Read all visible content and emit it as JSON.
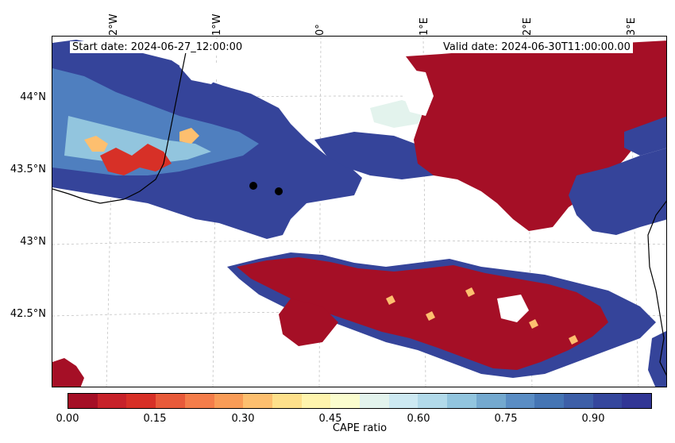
{
  "map": {
    "start_date": "Start date: 2024-06-27_12:00:00",
    "valid_date": "Valid  date: 2024-06-30T11:00:00.00",
    "lon_labels": [
      "2°W",
      "1°W",
      "0°",
      "1°E",
      "2°E",
      "3°E"
    ],
    "lat_labels": [
      "44°N",
      "43.5°N",
      "43°N",
      "42.5°N"
    ],
    "point_markers": [
      {
        "lon": -0.63,
        "lat": 43.39
      },
      {
        "lon": -0.37,
        "lat": 43.35
      }
    ]
  },
  "colorbar": {
    "label": "CAPE ratio",
    "ticks": [
      "0.00",
      "0.15",
      "0.30",
      "0.45",
      "0.60",
      "0.75",
      "0.90"
    ],
    "range": [
      0,
      1
    ],
    "colors": [
      "#a50f26",
      "#c7222a",
      "#d73027",
      "#e85a3a",
      "#f47d4a",
      "#f99c57",
      "#fdbf6f",
      "#fee08b",
      "#fff4ad",
      "#fbfdce",
      "#e3f3ed",
      "#cde9f2",
      "#b2daea",
      "#92c5de",
      "#74a9cf",
      "#5a8dc4",
      "#4575b4",
      "#3d5fa8",
      "#35479d",
      "#313695"
    ]
  },
  "colors": {
    "low_ratio": "#a50f26",
    "high_ratio": "#35449a",
    "mid_ratio": "#5a8dc4",
    "coast": "#000000"
  }
}
